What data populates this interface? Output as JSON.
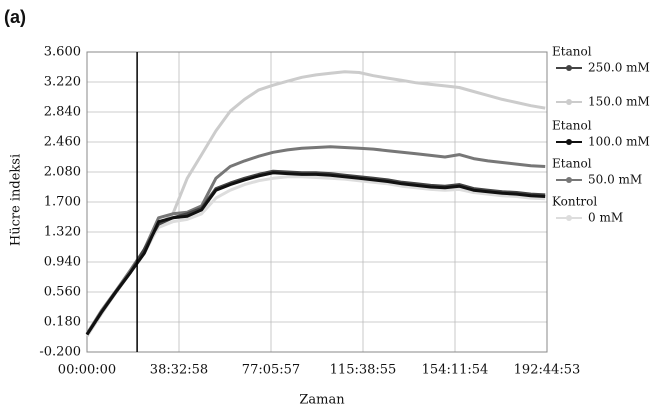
{
  "chart_data": {
    "type": "line",
    "title": "(a)",
    "x_label": "Zaman",
    "y_label": "Hücre indeksi",
    "xlim": [
      0,
      693893
    ],
    "ylim": [
      -0.2,
      3.6
    ],
    "xticks": [
      {
        "value": 0,
        "label": "00:00:00"
      },
      {
        "value": 138778,
        "label": "38:32:58"
      },
      {
        "value": 277557,
        "label": "77:05:57"
      },
      {
        "value": 416335,
        "label": "115:38:55"
      },
      {
        "value": 555114,
        "label": "154:11:54"
      },
      {
        "value": 693893,
        "label": "192:44:53"
      }
    ],
    "yticks": [
      {
        "value": -0.2,
        "label": "-0.200"
      },
      {
        "value": 0.18,
        "label": "0.180"
      },
      {
        "value": 0.56,
        "label": "0.560"
      },
      {
        "value": 0.94,
        "label": "0.940"
      },
      {
        "value": 1.32,
        "label": "1.320"
      },
      {
        "value": 1.7,
        "label": "1.700"
      },
      {
        "value": 2.08,
        "label": "2.080"
      },
      {
        "value": 2.46,
        "label": "2.460"
      },
      {
        "value": 2.84,
        "label": "2.840"
      },
      {
        "value": 3.22,
        "label": "3.220"
      },
      {
        "value": 3.6,
        "label": "3.600"
      }
    ],
    "grid": true,
    "vline_x": 75600,
    "x": [
      0,
      21600,
      43200,
      64800,
      86400,
      108000,
      129600,
      151200,
      172800,
      194400,
      216000,
      237600,
      259200,
      280800,
      302400,
      324000,
      345600,
      367200,
      388800,
      410400,
      432000,
      453600,
      475200,
      496800,
      518400,
      540000,
      561600,
      583200,
      604800,
      626400,
      648000,
      669600,
      691200
    ],
    "series": [
      {
        "group": "Etanol",
        "name": "250.0 mM",
        "color": "#444444",
        "values": [
          0.02,
          0.3,
          0.55,
          0.8,
          1.1,
          1.42,
          1.5,
          1.55,
          1.62,
          1.87,
          1.94,
          2.0,
          2.05,
          2.09,
          2.08,
          2.07,
          2.07,
          2.06,
          2.04,
          2.02,
          2.0,
          1.98,
          1.95,
          1.93,
          1.91,
          1.9,
          1.92,
          1.87,
          1.85,
          1.83,
          1.82,
          1.8,
          1.79
        ]
      },
      {
        "name": "150.0 mM",
        "color": "#cccccc",
        "values": [
          0.0,
          0.28,
          0.55,
          0.82,
          1.05,
          1.4,
          1.55,
          2.0,
          2.3,
          2.6,
          2.85,
          3.0,
          3.12,
          3.18,
          3.23,
          3.28,
          3.31,
          3.33,
          3.35,
          3.34,
          3.3,
          3.27,
          3.24,
          3.21,
          3.19,
          3.17,
          3.15,
          3.1,
          3.05,
          3.0,
          2.96,
          2.92,
          2.89
        ]
      },
      {
        "group": "Etanol",
        "name": "100.0 mM",
        "color": "#111111",
        "values": [
          0.02,
          0.3,
          0.56,
          0.8,
          1.05,
          1.45,
          1.5,
          1.52,
          1.6,
          1.85,
          1.92,
          1.98,
          2.03,
          2.07,
          2.06,
          2.05,
          2.05,
          2.04,
          2.02,
          2.0,
          1.98,
          1.96,
          1.93,
          1.91,
          1.89,
          1.88,
          1.9,
          1.85,
          1.83,
          1.81,
          1.8,
          1.78,
          1.77
        ]
      },
      {
        "group": "Etanol",
        "name": "50.0 mM",
        "color": "#777777",
        "values": [
          0.03,
          0.32,
          0.57,
          0.83,
          1.1,
          1.5,
          1.55,
          1.57,
          1.65,
          2.0,
          2.15,
          2.22,
          2.28,
          2.33,
          2.36,
          2.38,
          2.39,
          2.4,
          2.39,
          2.38,
          2.37,
          2.35,
          2.33,
          2.31,
          2.29,
          2.27,
          2.3,
          2.25,
          2.22,
          2.2,
          2.18,
          2.16,
          2.15
        ]
      },
      {
        "group": "Kontrol",
        "name": "0 mM",
        "color": "#dddddd",
        "values": [
          0.0,
          0.3,
          0.55,
          0.8,
          1.08,
          1.38,
          1.45,
          1.48,
          1.55,
          1.75,
          1.85,
          1.92,
          1.97,
          2.0,
          2.02,
          2.02,
          2.01,
          2.0,
          1.99,
          1.97,
          1.95,
          1.93,
          1.9,
          1.88,
          1.86,
          1.85,
          1.86,
          1.82,
          1.8,
          1.78,
          1.77,
          1.75,
          1.74
        ]
      }
    ]
  }
}
